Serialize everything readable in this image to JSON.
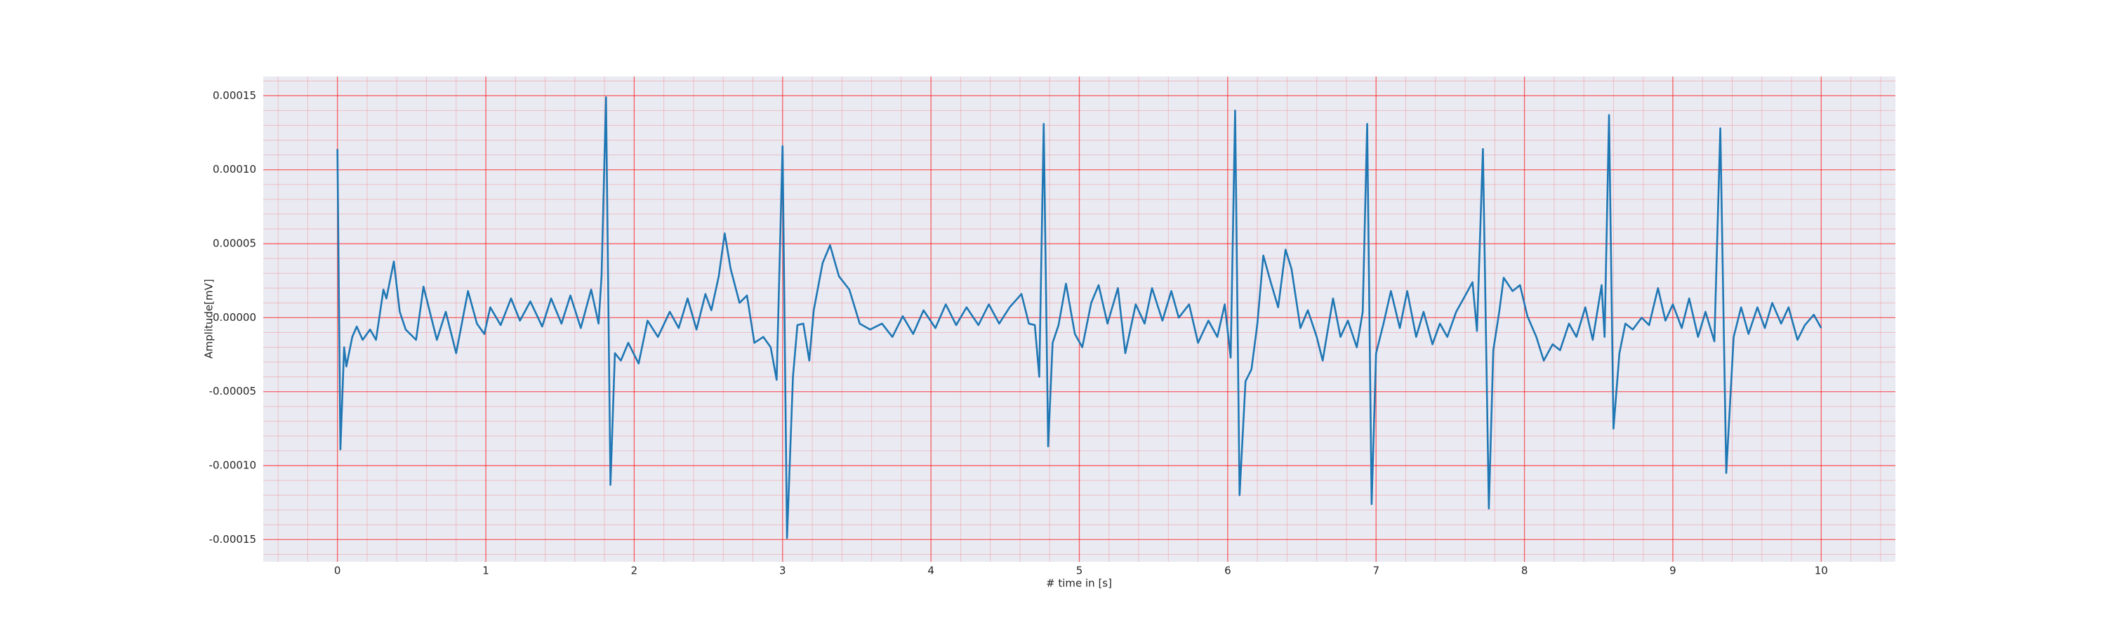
{
  "chart_data": {
    "type": "line",
    "xlabel": "# time in [s]",
    "ylabel": "Amplitude[mV]",
    "color": "#1f77b4",
    "grid": true,
    "minor_grid": true,
    "grid_color": "#ff0000",
    "xlim": [
      -0.5,
      10.5
    ],
    "ylim": [
      -0.000165,
      0.000163
    ],
    "xticks": [
      0,
      1,
      2,
      3,
      4,
      5,
      6,
      7,
      8,
      9,
      10
    ],
    "yticks": [
      0.00015,
      {
        "value": 0.0001,
        "label": "0.00010"
      },
      5e-05,
      {
        "value": 0,
        "label": "0.00000"
      },
      -5e-05,
      {
        "value": -0.0001,
        "label": "-0.00010"
      },
      -0.00015
    ],
    "x": [
      0,
      0.02,
      0.045,
      0.06,
      0.1,
      0.13,
      0.17,
      0.22,
      0.26,
      0.31,
      0.33,
      0.38,
      0.42,
      0.46,
      0.53,
      0.58,
      0.62,
      0.67,
      0.73,
      0.8,
      0.88,
      0.94,
      0.99,
      1.03,
      1.1,
      1.17,
      1.23,
      1.3,
      1.38,
      1.44,
      1.51,
      1.57,
      1.64,
      1.71,
      1.76,
      1.78,
      1.81,
      1.84,
      1.87,
      1.91,
      1.96,
      2.03,
      2.09,
      2.16,
      2.24,
      2.3,
      2.36,
      2.42,
      2.48,
      2.52,
      2.57,
      2.61,
      2.65,
      2.71,
      2.76,
      2.81,
      2.87,
      2.92,
      2.96,
      3.0,
      3.03,
      3.07,
      3.1,
      3.14,
      3.18,
      3.21,
      3.27,
      3.32,
      3.38,
      3.45,
      3.52,
      3.59,
      3.67,
      3.74,
      3.81,
      3.88,
      3.95,
      4.03,
      4.1,
      4.17,
      4.24,
      4.32,
      4.39,
      4.46,
      4.53,
      4.61,
      4.66,
      4.7,
      4.73,
      4.76,
      4.79,
      4.82,
      4.86,
      4.91,
      4.97,
      5.02,
      5.08,
      5.13,
      5.19,
      5.26,
      5.31,
      5.38,
      5.44,
      5.49,
      5.56,
      5.62,
      5.67,
      5.74,
      5.8,
      5.87,
      5.93,
      5.98,
      6.02,
      6.05,
      6.08,
      6.12,
      6.16,
      6.2,
      6.24,
      6.29,
      6.34,
      6.39,
      6.43,
      6.49,
      6.54,
      6.6,
      6.64,
      6.71,
      6.76,
      6.81,
      6.87,
      6.91,
      6.94,
      6.97,
      7.0,
      7.05,
      7.1,
      7.16,
      7.21,
      7.27,
      7.32,
      7.38,
      7.43,
      7.48,
      7.54,
      7.59,
      7.65,
      7.68,
      7.72,
      7.76,
      7.79,
      7.83,
      7.86,
      7.92,
      7.97,
      8.02,
      8.08,
      8.13,
      8.19,
      8.24,
      8.3,
      8.35,
      8.41,
      8.46,
      8.52,
      8.54,
      8.57,
      8.6,
      8.64,
      8.68,
      8.73,
      8.79,
      8.84,
      8.9,
      8.95,
      9.0,
      9.06,
      9.11,
      9.17,
      9.22,
      9.28,
      9.32,
      9.36,
      9.41,
      9.46,
      9.51,
      9.57,
      9.62,
      9.67,
      9.73,
      9.78,
      9.84,
      9.89,
      9.95,
      10.0
    ],
    "values": [
      0.000114,
      -8.9e-05,
      -2e-05,
      -3.3e-05,
      -1.3e-05,
      -6e-06,
      -1.5e-05,
      -8e-06,
      -1.5e-05,
      1.9e-05,
      1.3e-05,
      3.8e-05,
      4e-06,
      -8e-06,
      -1.5e-05,
      2.1e-05,
      5e-06,
      -1.5e-05,
      4e-06,
      -2.4e-05,
      1.8e-05,
      -4e-06,
      -1.1e-05,
      7e-06,
      -5e-06,
      1.3e-05,
      -2e-06,
      1.1e-05,
      -6e-06,
      1.3e-05,
      -4e-06,
      1.5e-05,
      -7e-06,
      1.9e-05,
      -4e-06,
      2.8e-05,
      0.000149,
      -0.000113,
      -2.4e-05,
      -2.9e-05,
      -1.7e-05,
      -3.1e-05,
      -2e-06,
      -1.3e-05,
      4e-06,
      -7e-06,
      1.3e-05,
      -8e-06,
      1.6e-05,
      5e-06,
      2.8e-05,
      5.7e-05,
      3.3e-05,
      1e-05,
      1.5e-05,
      -1.7e-05,
      -1.3e-05,
      -2e-05,
      -4.2e-05,
      0.000116,
      -0.000149,
      -4e-05,
      -5e-06,
      -4e-06,
      -2.9e-05,
      5e-06,
      3.7e-05,
      4.9e-05,
      2.8e-05,
      1.9e-05,
      -4e-06,
      -8e-06,
      -4e-06,
      -1.3e-05,
      1e-06,
      -1.1e-05,
      5e-06,
      -7e-06,
      9e-06,
      -5e-06,
      7e-06,
      -5e-06,
      9e-06,
      -4e-06,
      7e-06,
      1.6e-05,
      -4e-06,
      -5e-06,
      -4e-05,
      0.000131,
      -8.7e-05,
      -1.7e-05,
      -5e-06,
      2.3e-05,
      -1.1e-05,
      -2e-05,
      1e-05,
      2.2e-05,
      -4e-06,
      2e-05,
      -2.4e-05,
      9e-06,
      -4e-06,
      2e-05,
      -2e-06,
      1.8e-05,
      0.0,
      9e-06,
      -1.7e-05,
      -2e-06,
      -1.3e-05,
      9e-06,
      -2.7e-05,
      0.00014,
      -0.00012,
      -4.3e-05,
      -3.5e-05,
      -4e-06,
      4.2e-05,
      2.4e-05,
      7e-06,
      4.6e-05,
      3.3e-05,
      -7e-06,
      5e-06,
      -1.3e-05,
      -2.9e-05,
      1.3e-05,
      -1.3e-05,
      -2e-06,
      -2e-05,
      4e-06,
      0.000131,
      -0.000126,
      -2.4e-05,
      -4e-06,
      1.8e-05,
      -7e-06,
      1.8e-05,
      -1.3e-05,
      4e-06,
      -1.8e-05,
      -4e-06,
      -1.3e-05,
      4e-06,
      1.3e-05,
      2.4e-05,
      -9e-06,
      0.000114,
      -0.000129,
      -2.2e-05,
      4e-06,
      2.7e-05,
      1.8e-05,
      2.2e-05,
      1e-06,
      -1.3e-05,
      -2.9e-05,
      -1.8e-05,
      -2.2e-05,
      -4e-06,
      -1.3e-05,
      7e-06,
      -1.5e-05,
      2.2e-05,
      -1.3e-05,
      0.000137,
      -7.5e-05,
      -2.4e-05,
      -4e-06,
      -8e-06,
      0.0,
      -5e-06,
      2e-05,
      -2e-06,
      9e-06,
      -7e-06,
      1.3e-05,
      -1.3e-05,
      4e-06,
      -1.6e-05,
      0.000128,
      -0.000105,
      -1.3e-05,
      7e-06,
      -1.1e-05,
      7e-06,
      -7e-06,
      1e-05,
      -4e-06,
      7e-06,
      -1.5e-05,
      -5e-06,
      2e-06,
      -7e-06
    ]
  }
}
